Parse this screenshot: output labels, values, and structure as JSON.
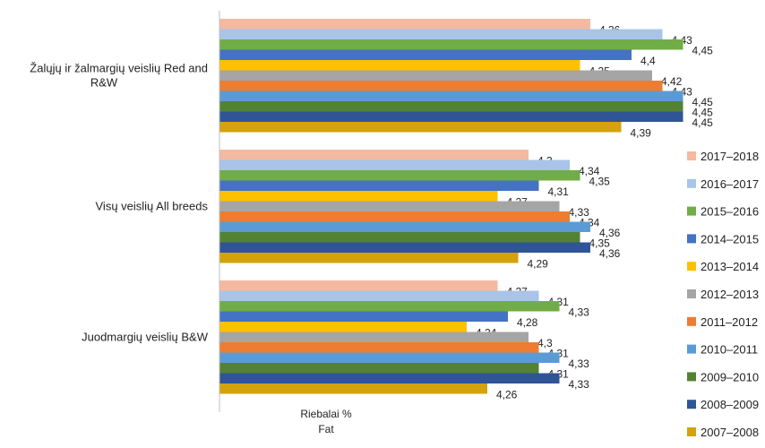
{
  "chart_data": {
    "type": "bar",
    "orientation": "horizontal",
    "xlabel": "Riebalai % Fat",
    "xlabel_lines": [
      "Riebalai %",
      "Fat"
    ],
    "xlim": [
      4.0,
      4.45
    ],
    "grid": false,
    "legend_position": "right",
    "categories": [
      {
        "label_lines": [
          "Žalųjų ir žalmargių veislių Red and",
          "R&W"
        ]
      },
      {
        "label_lines": [
          "Visų veislių All breeds"
        ]
      },
      {
        "label_lines": [
          "Juodmargių veislių B&W"
        ]
      }
    ],
    "series": [
      {
        "name": "2017–2018",
        "color": "#F4B9A0",
        "values": [
          4.36,
          4.3,
          4.27
        ],
        "labels": [
          "4,36",
          "4,3",
          "4,27"
        ]
      },
      {
        "name": "2016–2017",
        "color": "#A9C4E8",
        "values": [
          4.43,
          4.34,
          4.31
        ],
        "labels": [
          "4,43",
          "4,34",
          "4,31"
        ]
      },
      {
        "name": "2015–2016",
        "color": "#70AD47",
        "values": [
          4.45,
          4.35,
          4.33
        ],
        "labels": [
          "4,45",
          "4,35",
          "4,33"
        ]
      },
      {
        "name": "2014–2015",
        "color": "#4472C4",
        "values": [
          4.4,
          4.31,
          4.28
        ],
        "labels": [
          "4,4",
          "4,31",
          "4,28"
        ]
      },
      {
        "name": "2013–2014",
        "color": "#FFC000",
        "values": [
          4.35,
          4.27,
          4.24
        ],
        "labels": [
          "4,35",
          "4,27",
          "4,24"
        ]
      },
      {
        "name": "2012–2013",
        "color": "#A5A5A5",
        "values": [
          4.42,
          4.33,
          4.3
        ],
        "labels": [
          "4,42",
          "4,33",
          "4,3"
        ]
      },
      {
        "name": "2011–2012",
        "color": "#ED7D31",
        "values": [
          4.43,
          4.34,
          4.31
        ],
        "labels": [
          "4,43",
          "4,34",
          "4,31"
        ]
      },
      {
        "name": "2010–2011",
        "color": "#5B9BD5",
        "values": [
          4.45,
          4.36,
          4.33
        ],
        "labels": [
          "4,45",
          "4,36",
          "4,33"
        ]
      },
      {
        "name": "2009–2010",
        "color": "#548235",
        "values": [
          4.45,
          4.35,
          4.31
        ],
        "labels": [
          "4,45",
          "4,35",
          "4,31"
        ]
      },
      {
        "name": "2008–2009",
        "color": "#2F5597",
        "values": [
          4.45,
          4.36,
          4.33
        ],
        "labels": [
          "4,45",
          "4,36",
          "4,33"
        ]
      },
      {
        "name": "2007–2008",
        "color": "#D4A20A",
        "values": [
          4.39,
          4.29,
          4.26
        ],
        "labels": [
          "4,39",
          "4,29",
          "4,26"
        ]
      }
    ]
  }
}
